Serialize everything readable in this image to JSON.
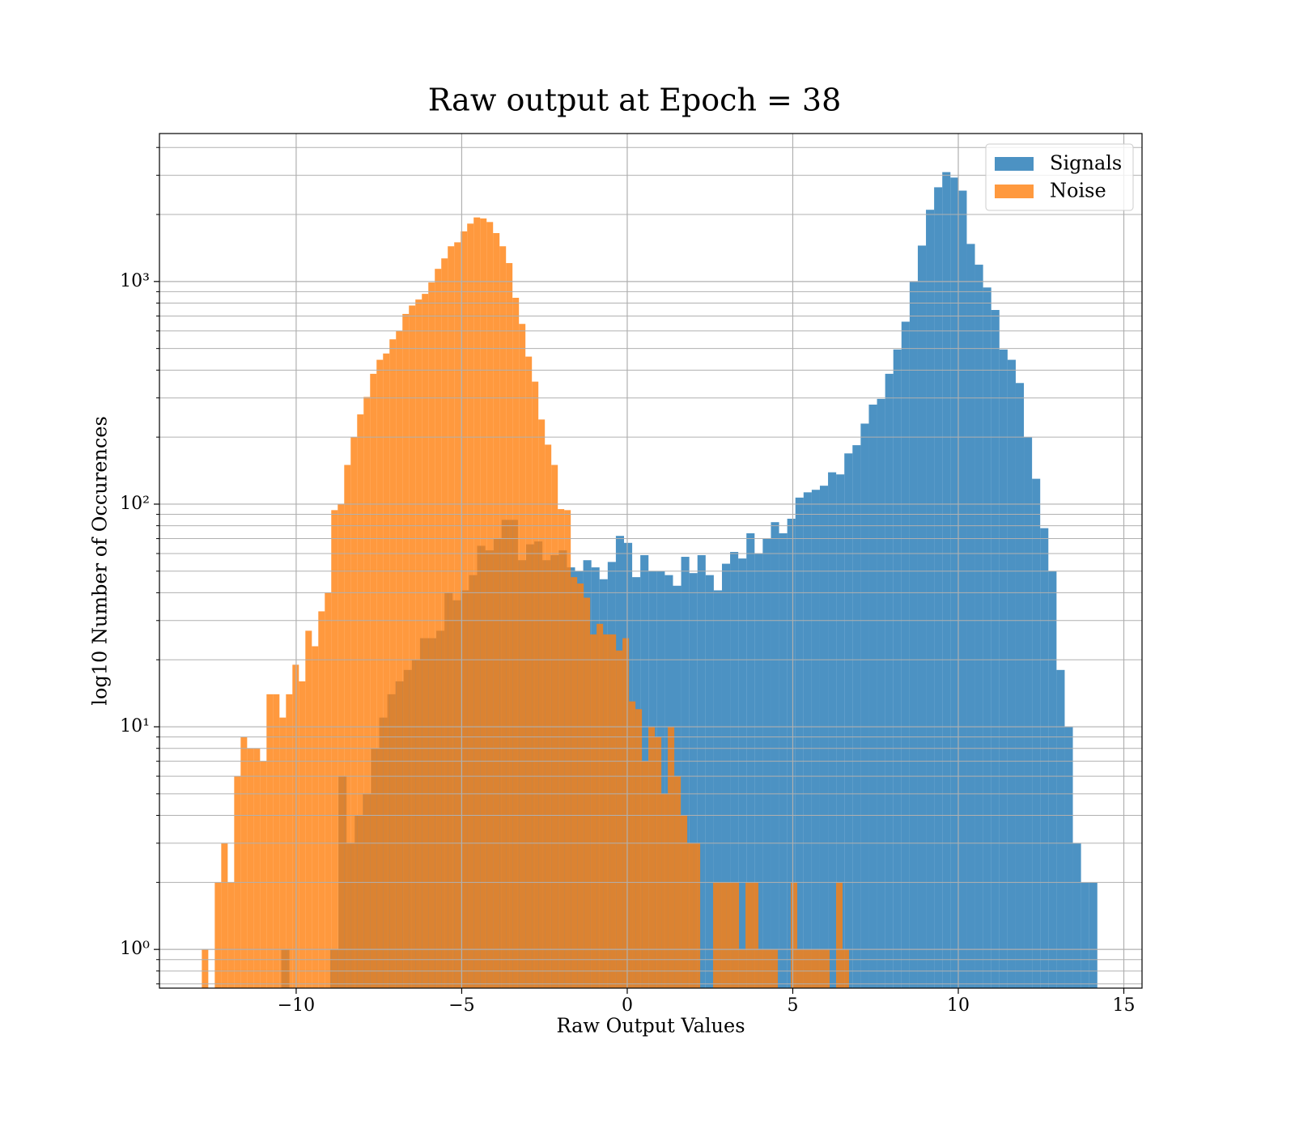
{
  "chart_data": {
    "type": "histogram",
    "title": "Raw output at Epoch = 38",
    "xlabel": "Raw Output Values",
    "ylabel": "log10 Number of Occurences",
    "yscale": "log",
    "grid": true,
    "legend": "upper right",
    "alpha": 0.8,
    "xlim": [
      -14.13,
      15.55
    ],
    "ylim": [
      0.67,
      4620
    ],
    "xticks": [
      {
        "value": -10,
        "label": "−10"
      },
      {
        "value": -5,
        "label": "−5"
      },
      0,
      5,
      10,
      15
    ],
    "yticks": [
      {
        "value": 1,
        "label": "10⁰"
      },
      {
        "value": 10,
        "label": "10¹"
      },
      {
        "value": 100,
        "label": "10²"
      },
      {
        "value": 1000,
        "label": "10³"
      }
    ],
    "y_minor_ticks": [
      0.7,
      0.8,
      0.9,
      2,
      3,
      4,
      5,
      6,
      7,
      8,
      9,
      20,
      30,
      40,
      50,
      60,
      70,
      80,
      90,
      200,
      300,
      400,
      500,
      600,
      700,
      800,
      900,
      2000,
      3000,
      4000
    ],
    "series": [
      {
        "name": "Signals",
        "color": "#1f77b4",
        "bins": [
          -10.45,
          -10.2035,
          -9.957,
          -9.7105,
          -9.464,
          -9.2175,
          -8.971,
          -8.7245,
          -8.478,
          -8.2315,
          -7.985,
          -7.7385,
          -7.492,
          -7.2455,
          -6.999,
          -6.7525,
          -6.506,
          -6.2595,
          -6.013,
          -5.7665,
          -5.52,
          -5.2735,
          -5.027,
          -4.7805,
          -4.534,
          -4.2875,
          -4.041,
          -3.7945,
          -3.548,
          -3.3015,
          -3.055,
          -2.8085,
          -2.562,
          -2.3155,
          -2.069,
          -1.8225,
          -1.576,
          -1.3295,
          -1.083,
          -0.8365,
          -0.59,
          -0.3435,
          -0.097,
          0.1495,
          0.396,
          0.6425,
          0.889,
          1.1355,
          1.382,
          1.6285,
          1.875,
          2.1215,
          2.368,
          2.6145,
          2.861,
          3.1075,
          3.354,
          3.6005,
          3.847,
          4.0935,
          4.34,
          4.5865,
          4.833,
          5.0795,
          5.326,
          5.5725,
          5.819,
          6.0655,
          6.312,
          6.5585,
          6.805,
          7.0515,
          7.298,
          7.5445,
          7.791,
          8.0375,
          8.284,
          8.5305,
          8.777,
          9.0235,
          9.27,
          9.5165,
          9.763,
          10.0095,
          10.256,
          10.5025,
          10.749,
          10.9955,
          11.242,
          11.4885,
          11.735,
          11.9815,
          12.228,
          12.4745,
          12.721,
          12.9675,
          13.214,
          13.4605,
          13.707,
          13.9535,
          14.2
        ],
        "values": [
          1,
          0,
          0,
          0,
          0,
          0,
          1,
          6,
          3,
          4,
          5,
          8,
          11,
          14,
          16,
          18,
          20,
          25,
          25,
          27,
          40,
          37,
          41,
          48,
          65,
          62,
          70,
          85,
          85,
          56,
          66,
          68,
          56,
          59,
          62,
          52,
          50,
          56,
          52,
          46,
          55,
          72,
          67,
          47,
          59,
          50,
          50,
          48,
          43,
          58,
          49,
          59,
          48,
          41,
          54,
          61,
          57,
          74,
          60,
          70,
          83,
          74,
          86,
          107,
          113,
          116,
          121,
          139,
          136,
          169,
          184,
          230,
          280,
          297,
          385,
          495,
          660,
          1000,
          1450,
          2100,
          2650,
          3100,
          2930,
          2560,
          1475,
          1190,
          940,
          745,
          495,
          445,
          350,
          200,
          130,
          78,
          50,
          18,
          10,
          3,
          2,
          2
        ]
      },
      {
        "name": "Noise",
        "color": "#ff7f0e",
        "bins": [
          -12.85,
          -12.6545,
          -12.459,
          -12.2635,
          -12.068,
          -11.8725,
          -11.677,
          -11.4815,
          -11.286,
          -11.0905,
          -10.895,
          -10.6995,
          -10.504,
          -10.3085,
          -10.113,
          -9.9175,
          -9.722,
          -9.5265,
          -9.331,
          -9.1355,
          -8.94,
          -8.7445,
          -8.549,
          -8.3535,
          -8.158,
          -7.9625,
          -7.767,
          -7.5715,
          -7.376,
          -7.1805,
          -6.985,
          -6.7895,
          -6.594,
          -6.3985,
          -6.203,
          -6.0075,
          -5.812,
          -5.6165,
          -5.421,
          -5.2255,
          -5.03,
          -4.8345,
          -4.639,
          -4.4435,
          -4.248,
          -4.0525,
          -3.857,
          -3.6615,
          -3.466,
          -3.2705,
          -3.075,
          -2.8795,
          -2.684,
          -2.4885,
          -2.293,
          -2.0975,
          -1.902,
          -1.7065,
          -1.511,
          -1.3155,
          -1.12,
          -0.9245,
          -0.729,
          -0.5335,
          -0.338,
          -0.1425,
          0.053,
          0.2485,
          0.444,
          0.6395,
          0.835,
          1.0305,
          1.226,
          1.4215,
          1.617,
          1.8125,
          2.008,
          2.2035,
          2.399,
          2.5945,
          2.79,
          2.9855,
          3.181,
          3.3765,
          3.572,
          3.7675,
          3.963,
          4.1585,
          4.354,
          4.5495,
          4.745,
          4.9405,
          5.136,
          5.3315,
          5.527,
          5.7225,
          5.918,
          6.1135,
          6.309,
          6.5045,
          6.7
        ],
        "values": [
          1,
          0,
          2,
          3,
          2,
          6,
          9,
          8,
          8,
          7,
          14,
          14,
          11,
          14,
          19,
          16,
          27,
          23,
          33,
          40,
          94,
          100,
          150,
          200,
          253,
          303,
          385,
          445,
          475,
          550,
          600,
          715,
          780,
          830,
          880,
          990,
          1140,
          1270,
          1440,
          1500,
          1680,
          1820,
          1940,
          1920,
          1850,
          1650,
          1440,
          1210,
          845,
          645,
          460,
          355,
          240,
          185,
          150,
          95,
          94,
          47,
          44,
          38,
          26,
          29,
          26,
          26,
          22,
          25,
          13,
          12,
          7,
          10,
          9,
          5,
          10,
          6,
          4,
          3,
          3,
          0,
          0,
          2,
          2,
          2,
          2,
          1,
          2,
          2,
          1,
          1,
          1,
          0,
          0,
          2,
          1,
          1,
          1,
          1,
          1,
          0,
          2,
          1
        ]
      }
    ]
  }
}
